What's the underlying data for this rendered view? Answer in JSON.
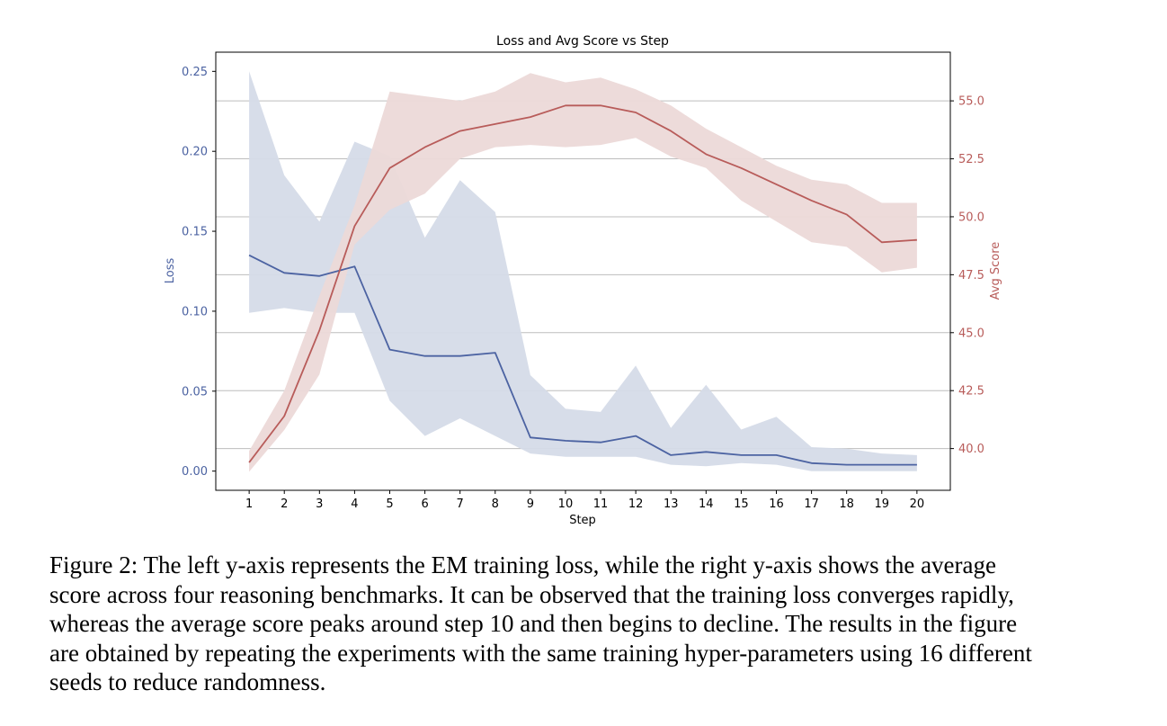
{
  "chart_data": {
    "type": "line",
    "title": "Loss and Avg Score vs Step",
    "xlabel": "Step",
    "ylabel_left": "Loss",
    "ylabel_right": "Avg Score",
    "x": [
      1,
      2,
      3,
      4,
      5,
      6,
      7,
      8,
      9,
      10,
      11,
      12,
      13,
      14,
      15,
      16,
      17,
      18,
      19,
      20
    ],
    "xticks": [
      "1",
      "2",
      "3",
      "4",
      "5",
      "6",
      "7",
      "8",
      "9",
      "10",
      "11",
      "12",
      "13",
      "14",
      "15",
      "16",
      "17",
      "18",
      "19",
      "20"
    ],
    "ylim_left": [
      -0.012,
      0.262
    ],
    "yticks_left": [
      "0.00",
      "0.05",
      "0.10",
      "0.15",
      "0.20",
      "0.25"
    ],
    "ylim_right": [
      38.2,
      57.1
    ],
    "yticks_right": [
      "40.0",
      "42.5",
      "45.0",
      "47.5",
      "50.0",
      "52.5",
      "55.0"
    ],
    "grid": "horizontal on right axis",
    "series": [
      {
        "axis": "left",
        "color": "#4c63a2",
        "band_color": "#d5dbe8",
        "values": [
          0.135,
          0.124,
          0.122,
          0.128,
          0.076,
          0.072,
          0.072,
          0.074,
          0.021,
          0.019,
          0.018,
          0.022,
          0.01,
          0.012,
          0.01,
          0.01,
          0.005,
          0.004,
          0.004,
          0.004
        ],
        "lower": [
          0.099,
          0.102,
          0.099,
          0.099,
          0.044,
          0.022,
          0.033,
          0.022,
          0.011,
          0.009,
          0.009,
          0.009,
          0.004,
          0.003,
          0.005,
          0.004,
          0.0,
          0.0,
          0.0,
          0.0
        ],
        "upper": [
          0.25,
          0.185,
          0.156,
          0.206,
          0.197,
          0.146,
          0.182,
          0.162,
          0.06,
          0.039,
          0.037,
          0.066,
          0.027,
          0.054,
          0.026,
          0.034,
          0.015,
          0.014,
          0.011,
          0.01
        ]
      },
      {
        "axis": "right",
        "color": "#b85c5a",
        "band_color": "#ecd9d8",
        "values": [
          39.4,
          41.4,
          45.1,
          49.6,
          52.1,
          53.0,
          53.7,
          54.0,
          54.3,
          54.8,
          54.8,
          54.5,
          53.7,
          52.7,
          52.1,
          51.4,
          50.7,
          50.1,
          48.9,
          49.0
        ],
        "lower": [
          39.0,
          40.8,
          43.2,
          48.8,
          50.3,
          51.0,
          52.5,
          53.0,
          53.1,
          53.0,
          53.1,
          53.4,
          52.6,
          52.1,
          50.7,
          49.8,
          48.9,
          48.7,
          47.6,
          47.8
        ],
        "upper": [
          39.9,
          42.5,
          46.6,
          50.5,
          55.4,
          55.2,
          55.0,
          55.4,
          56.2,
          55.8,
          56.0,
          55.5,
          54.8,
          53.8,
          53.0,
          52.2,
          51.6,
          51.4,
          50.6,
          50.6
        ]
      }
    ]
  },
  "caption": [
    "Figure 2: The left y-axis represents the EM training loss, while the right y-axis shows the average",
    "score across four reasoning benchmarks. It can be observed that the training loss converges rapidly,",
    "whereas the average score peaks around step 10 and then begins to decline. The results in the figure",
    "are obtained by repeating the experiments with the same training hyper-parameters using 16 different",
    "seeds to reduce randomness."
  ]
}
